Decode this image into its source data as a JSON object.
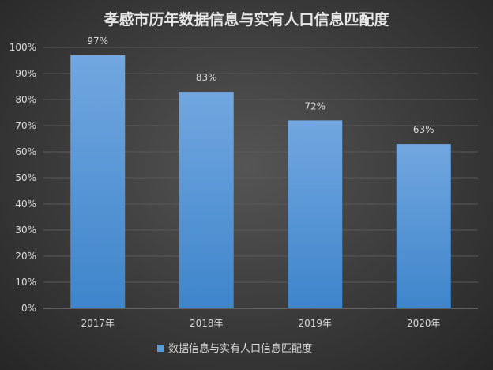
{
  "chart_data": {
    "type": "bar",
    "title": "孝感市历年数据信息与实有人口信息匹配度",
    "categories": [
      "2017年",
      "2018年",
      "2019年",
      "2020年"
    ],
    "series": [
      {
        "name": "数据信息与实有人口信息匹配度",
        "values": [
          97,
          83,
          72,
          63
        ]
      }
    ],
    "data_labels": [
      "97%",
      "83%",
      "72%",
      "63%"
    ],
    "y_ticks": [
      "0%",
      "10%",
      "20%",
      "30%",
      "40%",
      "50%",
      "60%",
      "70%",
      "80%",
      "90%",
      "100%"
    ],
    "ylim": [
      0,
      100
    ],
    "grid": true,
    "legend": "bottom",
    "colors": {
      "bar_top": "#6fa6e0",
      "bar_bottom": "#3f86cc",
      "grid": "#5a5a5a",
      "text": "#d9d9d9"
    }
  }
}
